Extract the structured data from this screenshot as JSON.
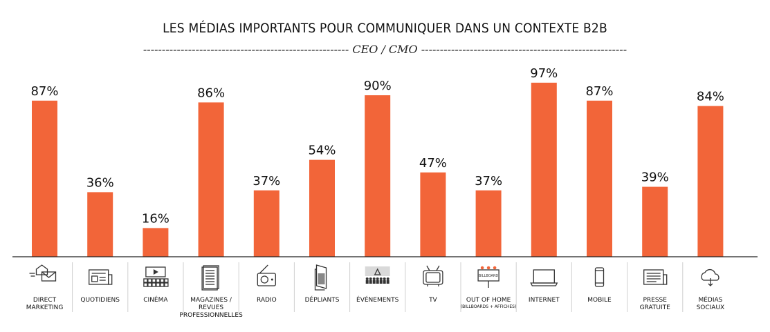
{
  "chart_data": {
    "type": "bar",
    "title": "LES MÉDIAS IMPORTANTS POUR COMMUNIQUER DANS UN CONTEXTE B2B",
    "subtitle": "------------------------------------------------------- CEO / CMO -------------------------------------------------------",
    "ylim": [
      0,
      100
    ],
    "grid": false,
    "legend": "none",
    "bar_color": "#f26539",
    "categories": [
      {
        "label": [
          "DIRECT",
          "MARKETING"
        ],
        "icon": "envelope-mail-icon"
      },
      {
        "label": [
          "QUOTIDIENS"
        ],
        "icon": "newspaper-icon"
      },
      {
        "label": [
          "CINÉMA"
        ],
        "icon": "cinema-screen-icon"
      },
      {
        "label": [
          "MAGAZINES /",
          "REVUES",
          "PROFESSIONNELLES"
        ],
        "icon": "magazine-icon"
      },
      {
        "label": [
          "RADIO"
        ],
        "icon": "radio-icon"
      },
      {
        "label": [
          "DÉPLIANTS"
        ],
        "icon": "leaflet-icon"
      },
      {
        "label": [
          "ÉVÉNEMENTS"
        ],
        "icon": "audience-event-icon"
      },
      {
        "label": [
          "TV"
        ],
        "icon": "television-icon"
      },
      {
        "label": [
          "OUT OF HOME"
        ],
        "sublabel": "(BILLBOARDS + AFFICHES)",
        "icon": "billboard-icon",
        "icon_text": "BILLBOARD"
      },
      {
        "label": [
          "INTERNET"
        ],
        "icon": "laptop-icon"
      },
      {
        "label": [
          "MOBILE"
        ],
        "icon": "smartphone-icon"
      },
      {
        "label": [
          "PRESSE",
          "GRATUITE"
        ],
        "icon": "free-press-icon"
      },
      {
        "label": [
          "MÉDIAS",
          "SOCIAUX"
        ],
        "icon": "social-cloud-icon"
      }
    ],
    "values": [
      87,
      36,
      16,
      86,
      37,
      54,
      90,
      47,
      37,
      97,
      87,
      39,
      84
    ],
    "value_labels": [
      "87%",
      "36%",
      "16%",
      "86%",
      "37%",
      "54%",
      "90%",
      "47%",
      "37%",
      "97%",
      "87%",
      "39%",
      "84%"
    ]
  }
}
